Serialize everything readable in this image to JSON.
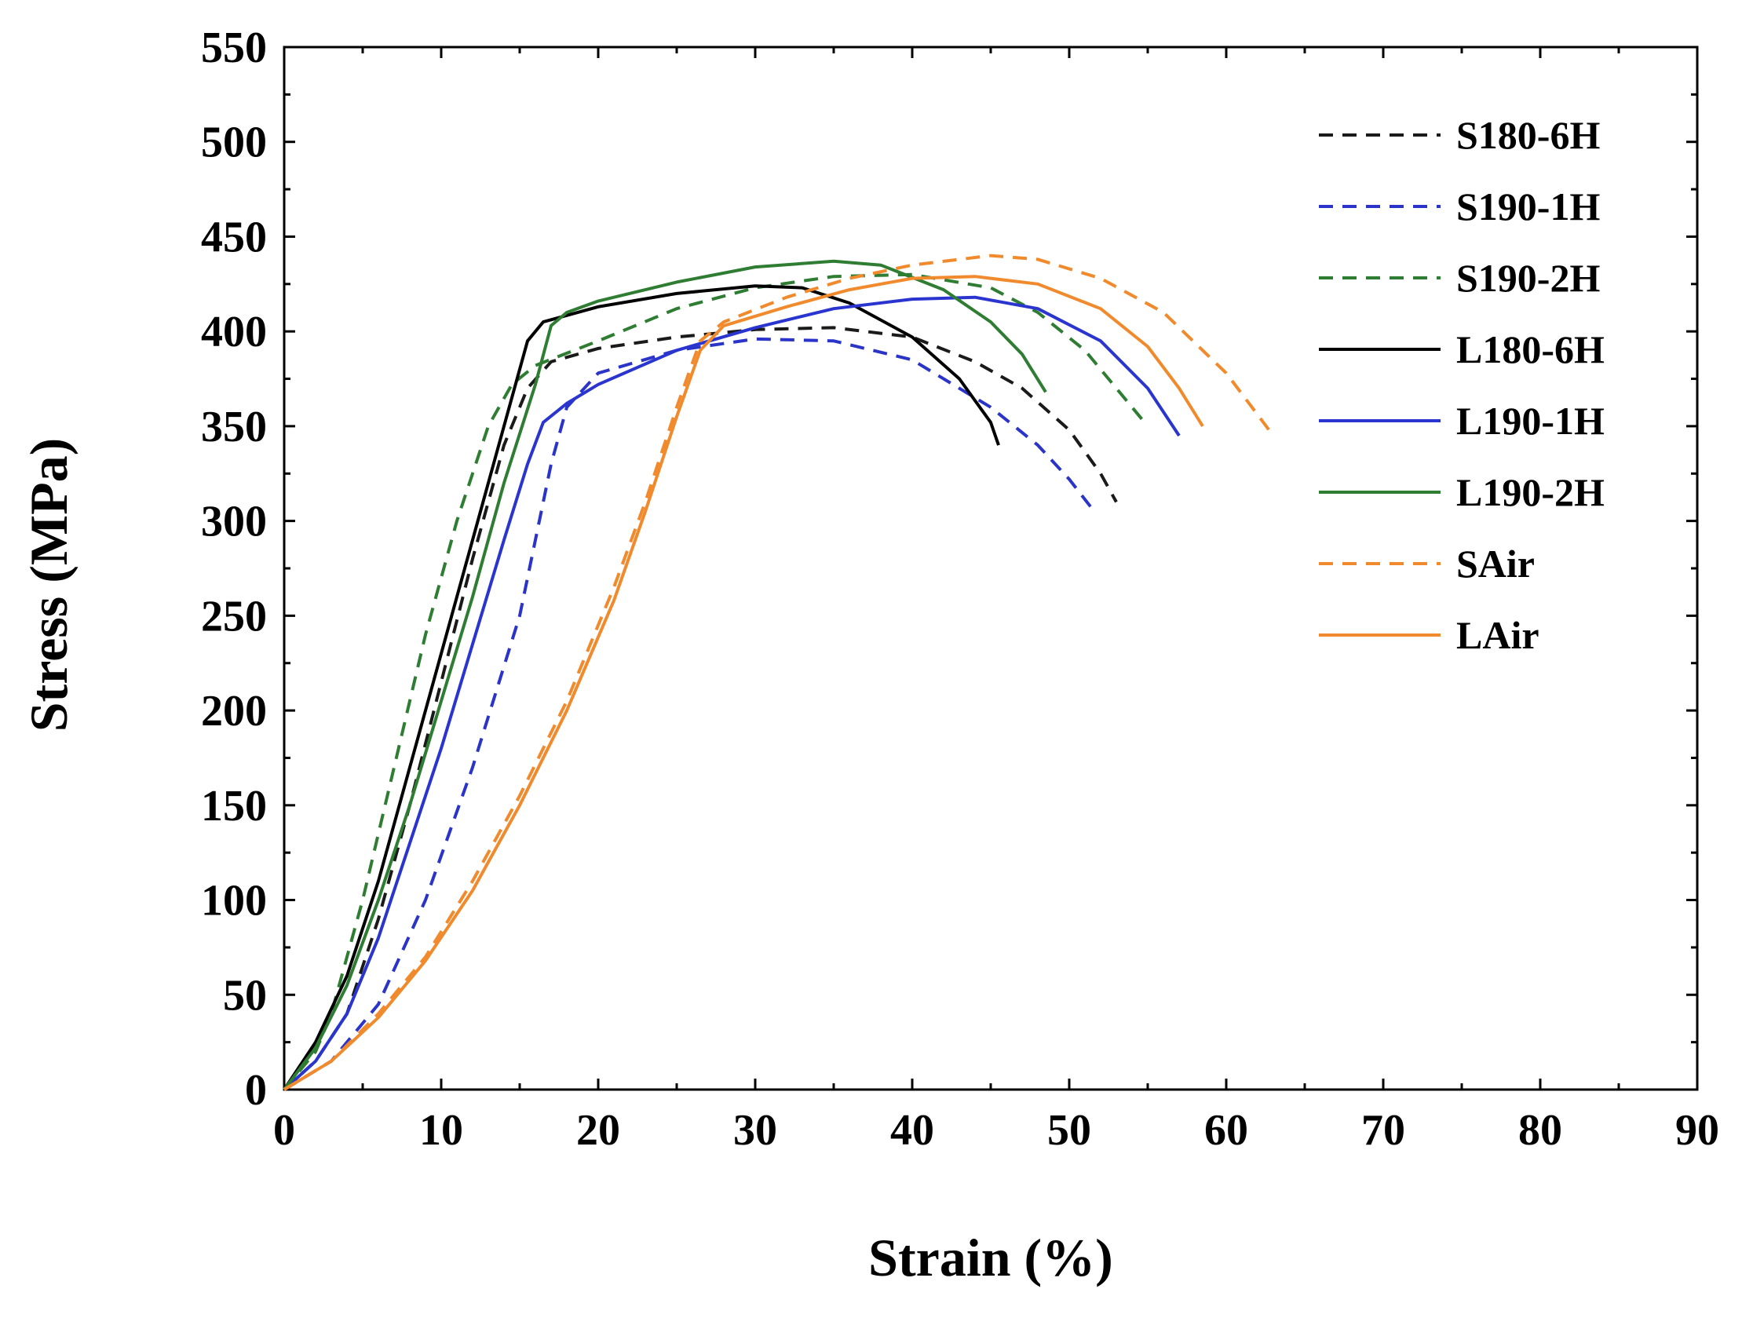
{
  "chart_data": {
    "type": "line",
    "title": "",
    "xlabel": "Strain (%)",
    "ylabel": "Stress (MPa)",
    "xlim": [
      0,
      90
    ],
    "ylim": [
      0,
      550
    ],
    "xticks": [
      0,
      10,
      20,
      30,
      40,
      50,
      60,
      70,
      80,
      90
    ],
    "yticks": [
      0,
      50,
      100,
      150,
      200,
      250,
      300,
      350,
      400,
      450,
      500,
      550
    ],
    "grid": false,
    "legend_position": "top-right",
    "series": [
      {
        "name": "S180-6H",
        "color": "#1a1a1a",
        "dashed": true,
        "points": [
          [
            0,
            0
          ],
          [
            2,
            15
          ],
          [
            4,
            40
          ],
          [
            6,
            90
          ],
          [
            8,
            150
          ],
          [
            10,
            215
          ],
          [
            12,
            280
          ],
          [
            14,
            340
          ],
          [
            15.5,
            370
          ],
          [
            17,
            384
          ],
          [
            20,
            391
          ],
          [
            25,
            397
          ],
          [
            30,
            401
          ],
          [
            35,
            402
          ],
          [
            40,
            397
          ],
          [
            44,
            384
          ],
          [
            47,
            370
          ],
          [
            50,
            348
          ],
          [
            52,
            325
          ],
          [
            53,
            310
          ]
        ]
      },
      {
        "name": "S190-1H",
        "color": "#2b34c8",
        "dashed": true,
        "points": [
          [
            0,
            0
          ],
          [
            3,
            15
          ],
          [
            6,
            45
          ],
          [
            9,
            100
          ],
          [
            12,
            170
          ],
          [
            15,
            250
          ],
          [
            17,
            330
          ],
          [
            18,
            360
          ],
          [
            20,
            378
          ],
          [
            25,
            390
          ],
          [
            30,
            396
          ],
          [
            35,
            395
          ],
          [
            40,
            385
          ],
          [
            45,
            360
          ],
          [
            48,
            340
          ],
          [
            50,
            322
          ],
          [
            51.5,
            306
          ]
        ]
      },
      {
        "name": "S190-2H",
        "color": "#2e7d32",
        "dashed": true,
        "points": [
          [
            0,
            0
          ],
          [
            2,
            20
          ],
          [
            3,
            40
          ],
          [
            5,
            100
          ],
          [
            7,
            170
          ],
          [
            9,
            240
          ],
          [
            11,
            300
          ],
          [
            13,
            350
          ],
          [
            14.5,
            372
          ],
          [
            16,
            382
          ],
          [
            20,
            395
          ],
          [
            25,
            412
          ],
          [
            30,
            423
          ],
          [
            35,
            429
          ],
          [
            40,
            430
          ],
          [
            45,
            423
          ],
          [
            48,
            410
          ],
          [
            51,
            390
          ],
          [
            53,
            370
          ],
          [
            55,
            350
          ]
        ]
      },
      {
        "name": "L180-6H",
        "color": "#000000",
        "dashed": false,
        "points": [
          [
            0,
            0
          ],
          [
            2,
            25
          ],
          [
            4,
            60
          ],
          [
            6,
            110
          ],
          [
            8,
            170
          ],
          [
            10,
            230
          ],
          [
            12,
            290
          ],
          [
            14,
            350
          ],
          [
            15.5,
            395
          ],
          [
            16.5,
            405
          ],
          [
            20,
            413
          ],
          [
            25,
            420
          ],
          [
            30,
            424
          ],
          [
            33,
            423
          ],
          [
            36,
            415
          ],
          [
            40,
            397
          ],
          [
            43,
            375
          ],
          [
            45,
            352
          ],
          [
            45.5,
            340
          ]
        ]
      },
      {
        "name": "L190-1H",
        "color": "#2a35d0",
        "dashed": false,
        "points": [
          [
            0,
            0
          ],
          [
            2,
            15
          ],
          [
            4,
            40
          ],
          [
            6,
            80
          ],
          [
            8,
            130
          ],
          [
            10,
            180
          ],
          [
            12,
            235
          ],
          [
            14,
            290
          ],
          [
            15.5,
            330
          ],
          [
            16.5,
            352
          ],
          [
            18,
            362
          ],
          [
            20,
            372
          ],
          [
            25,
            390
          ],
          [
            30,
            402
          ],
          [
            35,
            412
          ],
          [
            40,
            417
          ],
          [
            44,
            418
          ],
          [
            48,
            412
          ],
          [
            52,
            395
          ],
          [
            55,
            370
          ],
          [
            57,
            345
          ]
        ]
      },
      {
        "name": "L190-2H",
        "color": "#2e7d32",
        "dashed": false,
        "points": [
          [
            0,
            0
          ],
          [
            2,
            22
          ],
          [
            4,
            55
          ],
          [
            6,
            100
          ],
          [
            8,
            150
          ],
          [
            10,
            205
          ],
          [
            12,
            260
          ],
          [
            14,
            320
          ],
          [
            16,
            372
          ],
          [
            17,
            403
          ],
          [
            18,
            410
          ],
          [
            20,
            416
          ],
          [
            25,
            426
          ],
          [
            30,
            434
          ],
          [
            35,
            437
          ],
          [
            38,
            435
          ],
          [
            42,
            422
          ],
          [
            45,
            405
          ],
          [
            47,
            388
          ],
          [
            48.5,
            368
          ]
        ]
      },
      {
        "name": "SAir",
        "color": "#f08a2c",
        "dashed": true,
        "points": [
          [
            0,
            0
          ],
          [
            3,
            15
          ],
          [
            6,
            40
          ],
          [
            9,
            70
          ],
          [
            12,
            110
          ],
          [
            15,
            155
          ],
          [
            18,
            205
          ],
          [
            21,
            265
          ],
          [
            23,
            310
          ],
          [
            25,
            360
          ],
          [
            26.5,
            395
          ],
          [
            28,
            405
          ],
          [
            32,
            418
          ],
          [
            36,
            428
          ],
          [
            40,
            435
          ],
          [
            45,
            440
          ],
          [
            48,
            438
          ],
          [
            52,
            428
          ],
          [
            56,
            410
          ],
          [
            60,
            378
          ],
          [
            63,
            345
          ]
        ]
      },
      {
        "name": "LAir",
        "color": "#f08a2c",
        "dashed": false,
        "points": [
          [
            0,
            0
          ],
          [
            3,
            15
          ],
          [
            6,
            38
          ],
          [
            9,
            68
          ],
          [
            12,
            105
          ],
          [
            15,
            150
          ],
          [
            18,
            200
          ],
          [
            21,
            258
          ],
          [
            23,
            305
          ],
          [
            25,
            355
          ],
          [
            26.5,
            390
          ],
          [
            28,
            403
          ],
          [
            32,
            413
          ],
          [
            36,
            422
          ],
          [
            40,
            428
          ],
          [
            44,
            429
          ],
          [
            48,
            425
          ],
          [
            52,
            412
          ],
          [
            55,
            392
          ],
          [
            57,
            370
          ],
          [
            58.5,
            350
          ]
        ]
      }
    ]
  }
}
